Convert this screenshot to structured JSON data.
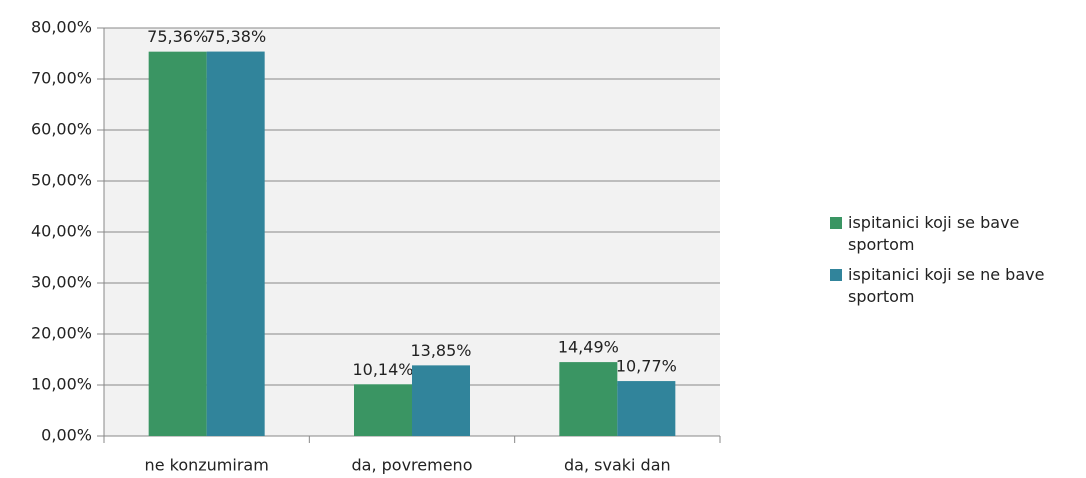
{
  "chart_data": {
    "type": "bar",
    "categories": [
      "ne konzumiram",
      "da, povremeno",
      "da, svaki dan"
    ],
    "series": [
      {
        "name": "ispitanici koji se bave sportom",
        "color": "#3a9563",
        "values": [
          75.36,
          10.14,
          14.49
        ],
        "value_labels": [
          "75,36%",
          "10,14%",
          "14,49%"
        ]
      },
      {
        "name": "ispitanici koji se ne bave sportom",
        "color": "#31849b",
        "values": [
          75.38,
          13.85,
          10.77
        ],
        "value_labels": [
          "75,38%",
          "13,85%",
          "10,77%"
        ]
      }
    ],
    "ylim": [
      0,
      80
    ],
    "yticks": [
      {
        "value": 0,
        "label": "0,00%"
      },
      {
        "value": 10,
        "label": "10,00%"
      },
      {
        "value": 20,
        "label": "20,00%"
      },
      {
        "value": 30,
        "label": "30,00%"
      },
      {
        "value": 40,
        "label": "40,00%"
      },
      {
        "value": 50,
        "label": "50,00%"
      },
      {
        "value": 60,
        "label": "60,00%"
      },
      {
        "value": 70,
        "label": "70,00%"
      },
      {
        "value": 80,
        "label": "80,00%"
      }
    ],
    "grid": true,
    "legend": "right"
  }
}
